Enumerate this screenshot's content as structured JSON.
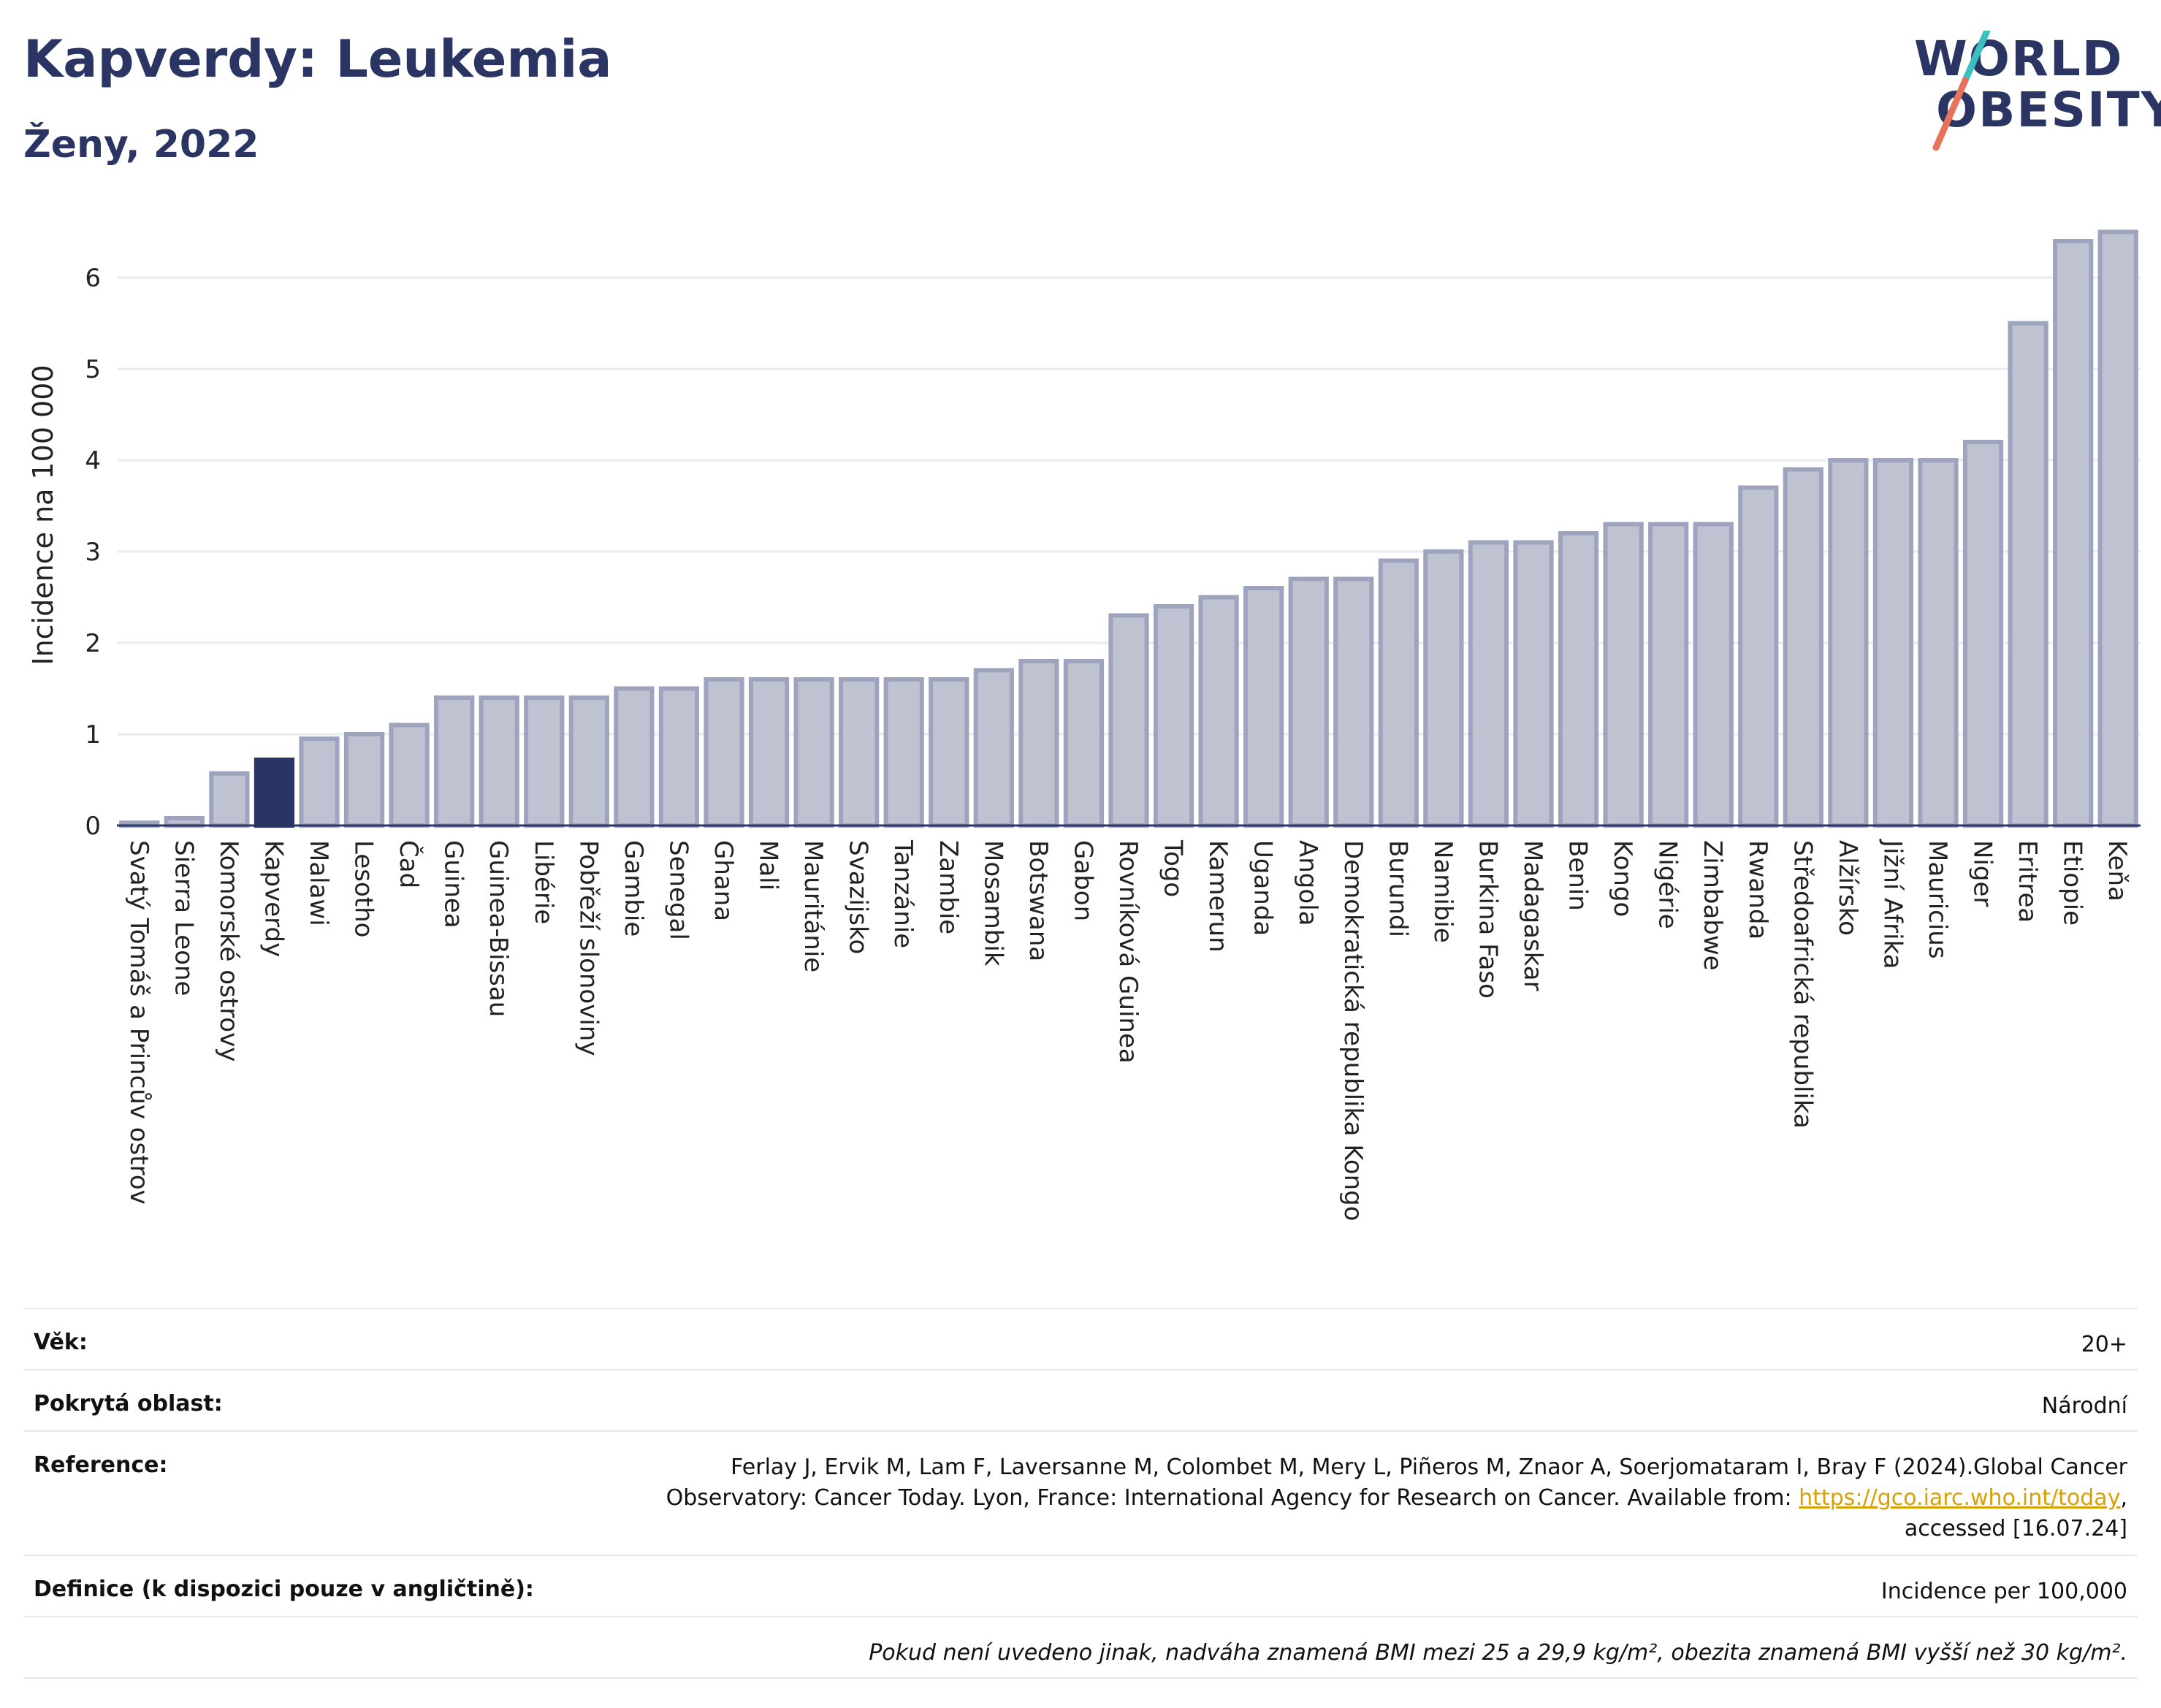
{
  "header": {
    "title": "Kapverdy: Leukemia",
    "subtitle": "Ženy, 2022"
  },
  "logo": {
    "line1": "WORLD",
    "line2": "OBESITY",
    "colors": {
      "text": "#2b3563",
      "slash_top": "#3bbfbf",
      "slash_bottom": "#e8735a"
    }
  },
  "chart_data": {
    "type": "bar",
    "ylabel": "Incidence na 100 000",
    "xlabel": "",
    "ylim": [
      0,
      6.6
    ],
    "yticks": [
      0,
      1,
      2,
      3,
      4,
      5,
      6
    ],
    "grid": true,
    "highlight": "Kapverdy",
    "colors": {
      "bar": "#bec2d1",
      "bar_edge": "#9ea4bd",
      "highlight": "#2b3563"
    },
    "categories": [
      "Svatý Tomáš a Princův ostrov",
      "Sierra Leone",
      "Komorské ostrovy",
      "Kapverdy",
      "Malawi",
      "Lesotho",
      "Čad",
      "Guinea",
      "Guinea-Bissau",
      "Libérie",
      "Pobřeží slonoviny",
      "Gambie",
      "Senegal",
      "Ghana",
      "Mali",
      "Mauritánie",
      "Svazijsko",
      "Tanzánie",
      "Zambie",
      "Mosambik",
      "Botswana",
      "Gabon",
      "Rovníková Guinea",
      "Togo",
      "Kamerun",
      "Uganda",
      "Angola",
      "Demokratická republika Kongo",
      "Burundi",
      "Namibie",
      "Burkina Faso",
      "Madagaskar",
      "Benin",
      "Kongo",
      "Nigérie",
      "Zimbabwe",
      "Rwanda",
      "Středoafrická republika",
      "Alžírsko",
      "Jižní Afrika",
      "Mauricius",
      "Niger",
      "Eritrea",
      "Etiopie",
      "Keňa"
    ],
    "values": [
      0.03,
      0.08,
      0.57,
      0.72,
      0.95,
      1.0,
      1.1,
      1.4,
      1.4,
      1.4,
      1.4,
      1.5,
      1.5,
      1.6,
      1.6,
      1.6,
      1.6,
      1.6,
      1.6,
      1.7,
      1.8,
      1.8,
      2.3,
      2.4,
      2.5,
      2.6,
      2.7,
      2.7,
      2.9,
      3.0,
      3.1,
      3.1,
      3.2,
      3.3,
      3.3,
      3.3,
      3.7,
      3.9,
      4.0,
      4.0,
      4.0,
      4.2,
      5.5,
      6.4,
      6.5
    ]
  },
  "info": {
    "age_label": "Věk:",
    "age_value": "20+",
    "area_label": "Pokrytá oblast:",
    "area_value": "Národní",
    "reference_label": "Reference:",
    "reference_line1": "Ferlay J, Ervik M, Lam F, Laversanne M, Colombet M, Mery L, Piñeros M, Znaor A, Soerjomataram I, Bray F (2024).Global Cancer",
    "reference_line2_prefix": "Observatory: Cancer Today. Lyon, France: International Agency for Research on Cancer. Available from: ",
    "reference_link": "https://gco.iarc.who.int/today",
    "reference_line2_suffix": ",",
    "reference_line3": "accessed [16.07.24]",
    "definition_label": "Definice (k dispozici pouze v angličtině):",
    "definition_value": "Incidence per 100,000",
    "note": "Pokud není uvedeno jinak, nadváha znamená BMI mezi 25 a 29,9 kg/m², obezita znamená BMI vyšší než 30 kg/m²."
  }
}
